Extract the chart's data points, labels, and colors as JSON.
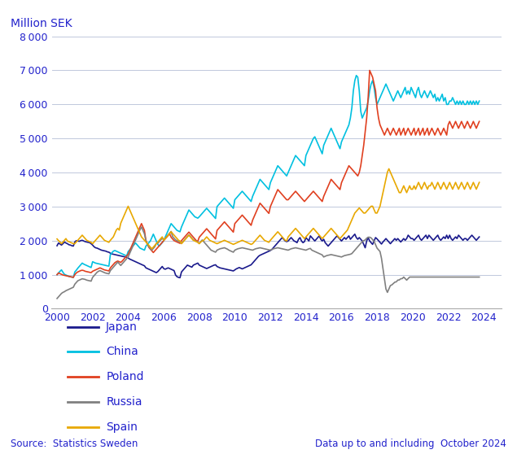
{
  "ylabel": "Million SEK",
  "ylim": [
    0,
    8000
  ],
  "yticks": [
    0,
    1000,
    2000,
    3000,
    4000,
    5000,
    6000,
    7000,
    8000
  ],
  "xlim_start": 1999.7,
  "xlim_end": 2025.0,
  "xtick_years": [
    2000,
    2002,
    2004,
    2006,
    2008,
    2010,
    2012,
    2014,
    2016,
    2018,
    2020,
    2022,
    2024
  ],
  "source_text": "Source:  Statistics Sweden",
  "data_text": "Data up to and including  October 2024",
  "text_color": "#2222cc",
  "bg_color": "#ffffff",
  "grid_color": "#c0c8dc",
  "legend_entries": [
    "Japan",
    "China",
    "Poland",
    "Russia",
    "Spain"
  ],
  "line_colors": [
    "#1a1a8c",
    "#00c0e0",
    "#e04020",
    "#808080",
    "#e8a800"
  ],
  "line_width": 1.2,
  "series": {
    "Japan": [
      1850,
      1930,
      1900,
      1870,
      1910,
      1960,
      1930,
      1910,
      1880,
      1870,
      1850,
      1840,
      1960,
      2000,
      1990,
      1980,
      2000,
      2010,
      1990,
      1970,
      1960,
      1950,
      1940,
      1910,
      1870,
      1820,
      1790,
      1780,
      1760,
      1740,
      1720,
      1710,
      1700,
      1690,
      1670,
      1660,
      1630,
      1610,
      1600,
      1590,
      1580,
      1570,
      1560,
      1550,
      1540,
      1530,
      1520,
      1510,
      1490,
      1460,
      1440,
      1420,
      1400,
      1380,
      1360,
      1340,
      1320,
      1300,
      1280,
      1260,
      1200,
      1180,
      1160,
      1140,
      1120,
      1100,
      1080,
      1060,
      1090,
      1140,
      1190,
      1240,
      1180,
      1160,
      1180,
      1200,
      1180,
      1160,
      1140,
      1120,
      990,
      940,
      920,
      910,
      1080,
      1130,
      1180,
      1230,
      1280,
      1260,
      1240,
      1220,
      1280,
      1300,
      1320,
      1340,
      1280,
      1260,
      1240,
      1220,
      1200,
      1180,
      1200,
      1220,
      1240,
      1260,
      1280,
      1290,
      1240,
      1220,
      1200,
      1190,
      1180,
      1170,
      1160,
      1150,
      1140,
      1130,
      1120,
      1110,
      1140,
      1170,
      1190,
      1210,
      1190,
      1170,
      1190,
      1210,
      1230,
      1250,
      1270,
      1290,
      1340,
      1390,
      1440,
      1490,
      1540,
      1570,
      1590,
      1610,
      1630,
      1650,
      1670,
      1690,
      1710,
      1740,
      1790,
      1840,
      1890,
      1940,
      1990,
      2040,
      2090,
      2040,
      1990,
      1970,
      1990,
      2040,
      2090,
      2040,
      1990,
      1970,
      1940,
      2040,
      2090,
      1990,
      1940,
      1970,
      2090,
      2040,
      1990,
      2140,
      2090,
      2040,
      1990,
      2040,
      2090,
      2140,
      2040,
      1990,
      2040,
      1940,
      1890,
      1840,
      1890,
      1940,
      1990,
      2040,
      2090,
      2140,
      2090,
      2040,
      1990,
      2040,
      2090,
      2040,
      2090,
      2140,
      2040,
      2090,
      2140,
      2190,
      2090,
      2040,
      2090,
      2040,
      1990,
      1890,
      1790,
      1990,
      2090,
      1990,
      1940,
      1890,
      1990,
      2090,
      2050,
      2000,
      1950,
      1900,
      1960,
      2010,
      2060,
      2010,
      1960,
      1910,
      1960,
      2010,
      2060,
      2010,
      2060,
      2010,
      1960,
      2010,
      2060,
      2010,
      2060,
      2160,
      2110,
      2060,
      2060,
      2010,
      2060,
      2110,
      2160,
      2060,
      2010,
      2060,
      2110,
      2160,
      2060,
      2160,
      2110,
      2060,
      2010,
      2060,
      2110,
      2160,
      2060,
      2010,
      2060,
      2110,
      2060,
      2160,
      2060,
      2160,
      2060,
      2010,
      2060,
      2110,
      2060,
      2160,
      2110,
      2060,
      2010,
      2060,
      2060,
      2010,
      2060,
      2110,
      2160,
      2110,
      2060,
      2010,
      2060,
      2110
    ],
    "China": [
      1000,
      1050,
      1100,
      1140,
      1070,
      1010,
      990,
      970,
      950,
      940,
      930,
      920,
      1080,
      1130,
      1190,
      1240,
      1290,
      1340,
      1310,
      1290,
      1270,
      1250,
      1230,
      1210,
      1380,
      1360,
      1340,
      1330,
      1320,
      1310,
      1300,
      1290,
      1280,
      1270,
      1260,
      1250,
      1590,
      1640,
      1690,
      1710,
      1690,
      1670,
      1650,
      1630,
      1610,
      1590,
      1570,
      1550,
      1680,
      1730,
      1780,
      1830,
      1880,
      1930,
      1880,
      1830,
      1780,
      1760,
      1740,
      1720,
      1840,
      1890,
      1940,
      1990,
      2090,
      2190,
      2090,
      1990,
      1890,
      1840,
      1890,
      1940,
      2000,
      2100,
      2200,
      2300,
      2400,
      2500,
      2450,
      2400,
      2350,
      2300,
      2280,
      2260,
      2400,
      2500,
      2600,
      2700,
      2800,
      2900,
      2850,
      2800,
      2750,
      2700,
      2680,
      2660,
      2700,
      2750,
      2800,
      2850,
      2900,
      2950,
      2900,
      2850,
      2800,
      2750,
      2700,
      2650,
      3000,
      3050,
      3100,
      3150,
      3200,
      3250,
      3200,
      3150,
      3100,
      3050,
      3000,
      2950,
      3200,
      3250,
      3300,
      3350,
      3400,
      3450,
      3400,
      3350,
      3300,
      3250,
      3200,
      3150,
      3300,
      3400,
      3500,
      3600,
      3700,
      3800,
      3750,
      3700,
      3650,
      3600,
      3550,
      3500,
      3700,
      3800,
      3900,
      4000,
      4100,
      4200,
      4150,
      4100,
      4050,
      4000,
      3950,
      3900,
      4000,
      4100,
      4200,
      4300,
      4400,
      4500,
      4450,
      4400,
      4350,
      4300,
      4250,
      4200,
      4500,
      4600,
      4700,
      4800,
      4900,
      5000,
      5050,
      4950,
      4850,
      4750,
      4650,
      4550,
      4800,
      4900,
      5000,
      5100,
      5200,
      5300,
      5200,
      5100,
      5000,
      4900,
      4800,
      4700,
      4900,
      5000,
      5100,
      5200,
      5300,
      5400,
      5600,
      5900,
      6400,
      6700,
      6850,
      6800,
      6400,
      5800,
      5600,
      5700,
      5800,
      5900,
      6100,
      6400,
      6600,
      6700,
      6500,
      6200,
      6000,
      6100,
      6200,
      6300,
      6400,
      6500,
      6600,
      6500,
      6400,
      6300,
      6200,
      6100,
      6200,
      6300,
      6400,
      6300,
      6200,
      6300,
      6400,
      6500,
      6300,
      6400,
      6300,
      6500,
      6400,
      6300,
      6200,
      6400,
      6500,
      6300,
      6200,
      6300,
      6400,
      6300,
      6200,
      6300,
      6400,
      6300,
      6200,
      6300,
      6100,
      6200,
      6100,
      6200,
      6300,
      6100,
      6200,
      6000,
      6000,
      6100,
      6100,
      6200,
      6100,
      6000,
      6100,
      6000,
      6100,
      6000,
      6100,
      6000,
      6000,
      6100,
      6000,
      6100,
      6000,
      6100,
      6000,
      6100,
      6000,
      6100
    ],
    "Poland": [
      1000,
      1050,
      1030,
      1010,
      990,
      980,
      970,
      960,
      950,
      940,
      930,
      920,
      1000,
      1050,
      1080,
      1100,
      1120,
      1130,
      1120,
      1100,
      1090,
      1080,
      1070,
      1060,
      1100,
      1120,
      1140,
      1160,
      1180,
      1200,
      1180,
      1160,
      1140,
      1130,
      1120,
      1110,
      1200,
      1250,
      1300,
      1350,
      1380,
      1400,
      1380,
      1360,
      1400,
      1450,
      1500,
      1550,
      1600,
      1700,
      1800,
      1900,
      2000,
      2100,
      2200,
      2300,
      2400,
      2500,
      2400,
      2300,
      2000,
      1900,
      1800,
      1750,
      1700,
      1650,
      1700,
      1750,
      1800,
      1850,
      1900,
      1950,
      2000,
      2050,
      2100,
      2150,
      2200,
      2100,
      2050,
      2000,
      1980,
      1960,
      1940,
      1920,
      2000,
      2050,
      2100,
      2150,
      2200,
      2250,
      2200,
      2150,
      2100,
      2050,
      2000,
      1980,
      2100,
      2150,
      2200,
      2250,
      2300,
      2350,
      2300,
      2250,
      2200,
      2150,
      2100,
      2050,
      2300,
      2350,
      2400,
      2450,
      2500,
      2550,
      2500,
      2450,
      2400,
      2350,
      2300,
      2250,
      2500,
      2550,
      2600,
      2650,
      2700,
      2750,
      2700,
      2650,
      2600,
      2550,
      2500,
      2450,
      2600,
      2700,
      2800,
      2900,
      3000,
      3100,
      3050,
      3000,
      2950,
      2900,
      2850,
      2800,
      3000,
      3100,
      3200,
      3300,
      3400,
      3500,
      3450,
      3400,
      3350,
      3300,
      3250,
      3200,
      3200,
      3250,
      3300,
      3350,
      3400,
      3450,
      3400,
      3350,
      3300,
      3250,
      3200,
      3150,
      3200,
      3250,
      3300,
      3350,
      3400,
      3450,
      3400,
      3350,
      3300,
      3250,
      3200,
      3150,
      3300,
      3400,
      3500,
      3600,
      3700,
      3800,
      3750,
      3700,
      3650,
      3600,
      3550,
      3500,
      3700,
      3800,
      3900,
      4000,
      4100,
      4200,
      4150,
      4100,
      4050,
      4000,
      3950,
      3900,
      4000,
      4200,
      4500,
      4800,
      5200,
      5600,
      6200,
      7000,
      6900,
      6800,
      6600,
      6400,
      5900,
      5600,
      5400,
      5300,
      5200,
      5100,
      5200,
      5300,
      5200,
      5100,
      5200,
      5300,
      5200,
      5100,
      5200,
      5300,
      5100,
      5200,
      5300,
      5100,
      5200,
      5300,
      5200,
      5100,
      5200,
      5300,
      5100,
      5200,
      5300,
      5100,
      5200,
      5300,
      5100,
      5200,
      5300,
      5100,
      5200,
      5300,
      5200,
      5100,
      5200,
      5300,
      5200,
      5100,
      5200,
      5300,
      5200,
      5100,
      5400,
      5500,
      5400,
      5300,
      5400,
      5500,
      5400,
      5300,
      5400,
      5500,
      5400,
      5300,
      5400,
      5500,
      5400,
      5300,
      5400,
      5500,
      5400,
      5300,
      5400,
      5500
    ],
    "Russia": [
      300,
      350,
      400,
      450,
      480,
      500,
      530,
      550,
      570,
      590,
      610,
      630,
      720,
      770,
      820,
      840,
      860,
      880,
      870,
      860,
      840,
      830,
      820,
      810,
      920,
      970,
      1020,
      1070,
      1100,
      1120,
      1100,
      1080,
      1060,
      1045,
      1035,
      1025,
      1120,
      1170,
      1220,
      1270,
      1320,
      1370,
      1320,
      1270,
      1320,
      1370,
      1420,
      1470,
      1520,
      1620,
      1720,
      1820,
      1920,
      2020,
      2120,
      2220,
      2320,
      2400,
      2300,
      2200,
      2000,
      1900,
      1820,
      1770,
      1720,
      1770,
      1820,
      1920,
      1920,
      1970,
      2020,
      2070,
      2020,
      2070,
      2120,
      2170,
      2220,
      2270,
      2120,
      2070,
      2020,
      2000,
      1980,
      1960,
      1920,
      1970,
      2020,
      2070,
      2120,
      2170,
      2120,
      2070,
      2020,
      2000,
      1980,
      1960,
      1920,
      1970,
      2020,
      1970,
      1920,
      1870,
      1820,
      1770,
      1720,
      1700,
      1680,
      1660,
      1720,
      1740,
      1760,
      1770,
      1780,
      1790,
      1770,
      1750,
      1720,
      1700,
      1680,
      1660,
      1720,
      1740,
      1760,
      1770,
      1780,
      1790,
      1780,
      1770,
      1760,
      1750,
      1740,
      1730,
      1720,
      1740,
      1760,
      1770,
      1780,
      1790,
      1780,
      1770,
      1760,
      1750,
      1740,
      1730,
      1720,
      1740,
      1760,
      1770,
      1780,
      1790,
      1780,
      1770,
      1760,
      1750,
      1740,
      1730,
      1720,
      1740,
      1760,
      1770,
      1780,
      1790,
      1780,
      1770,
      1760,
      1750,
      1740,
      1730,
      1720,
      1740,
      1760,
      1770,
      1720,
      1700,
      1680,
      1660,
      1640,
      1620,
      1600,
      1580,
      1520,
      1540,
      1560,
      1570,
      1580,
      1590,
      1580,
      1570,
      1560,
      1550,
      1540,
      1530,
      1520,
      1540,
      1560,
      1570,
      1580,
      1590,
      1600,
      1620,
      1670,
      1720,
      1770,
      1820,
      1870,
      1920,
      1970,
      2000,
      2020,
      2070,
      2100,
      2100,
      2080,
      2030,
      1980,
      1880,
      1780,
      1730,
      1680,
      1480,
      1180,
      880,
      580,
      480,
      580,
      680,
      700,
      740,
      780,
      790,
      840,
      845,
      880,
      885,
      930,
      885,
      840,
      885,
      930,
      930,
      930,
      930,
      930,
      930,
      930,
      930,
      930,
      930,
      930,
      930,
      930,
      930,
      930,
      930,
      930,
      930,
      930,
      930,
      930,
      930,
      930,
      930,
      930,
      930,
      930,
      930,
      930,
      930,
      930,
      930,
      930,
      930,
      930,
      930,
      930,
      930,
      930,
      930,
      930,
      930,
      930,
      930,
      930,
      930,
      930,
      930
    ],
    "Spain": [
      2050,
      2000,
      1960,
      1910,
      1960,
      2010,
      2060,
      1990,
      1970,
      1950,
      1930,
      1910,
      1910,
      1960,
      2010,
      2060,
      2110,
      2160,
      2110,
      2060,
      2010,
      1990,
      1970,
      1950,
      1910,
      1960,
      2010,
      2060,
      2110,
      2160,
      2110,
      2060,
      2010,
      1990,
      1970,
      1950,
      2010,
      2060,
      2110,
      2210,
      2310,
      2360,
      2310,
      2510,
      2610,
      2710,
      2810,
      2910,
      3010,
      2910,
      2810,
      2710,
      2610,
      2510,
      2410,
      2310,
      2210,
      2110,
      2060,
      2010,
      1960,
      1910,
      1860,
      1810,
      1760,
      1810,
      1860,
      1910,
      1960,
      2010,
      2060,
      2110,
      2010,
      2060,
      2110,
      2160,
      2210,
      2260,
      2210,
      2160,
      2110,
      2060,
      2010,
      1990,
      1910,
      1960,
      2010,
      2060,
      2110,
      2160,
      2110,
      2060,
      2010,
      1990,
      1970,
      1950,
      1910,
      1960,
      1990,
      2010,
      2060,
      2110,
      2060,
      2010,
      1990,
      1970,
      1950,
      1930,
      1910,
      1930,
      1950,
      1970,
      1990,
      2010,
      1990,
      1970,
      1950,
      1930,
      1910,
      1890,
      1910,
      1930,
      1950,
      1970,
      1990,
      2010,
      1990,
      1970,
      1950,
      1930,
      1910,
      1890,
      1910,
      1960,
      2010,
      2060,
      2110,
      2160,
      2110,
      2060,
      2010,
      1990,
      1970,
      1950,
      2010,
      2060,
      2110,
      2160,
      2210,
      2260,
      2210,
      2160,
      2110,
      2060,
      2010,
      1990,
      2110,
      2160,
      2210,
      2260,
      2310,
      2360,
      2310,
      2260,
      2210,
      2160,
      2110,
      2060,
      2110,
      2160,
      2210,
      2260,
      2310,
      2360,
      2310,
      2260,
      2210,
      2160,
      2110,
      2060,
      2110,
      2160,
      2210,
      2260,
      2310,
      2360,
      2310,
      2260,
      2210,
      2160,
      2110,
      2060,
      2110,
      2160,
      2210,
      2260,
      2310,
      2410,
      2510,
      2610,
      2710,
      2810,
      2860,
      2910,
      2960,
      2910,
      2860,
      2810,
      2810,
      2860,
      2910,
      2960,
      3010,
      3010,
      2910,
      2810,
      2810,
      2910,
      3010,
      3210,
      3410,
      3610,
      3810,
      4010,
      4110,
      4010,
      3910,
      3810,
      3710,
      3610,
      3510,
      3410,
      3410,
      3510,
      3610,
      3510,
      3410,
      3510,
      3610,
      3510,
      3510,
      3610,
      3510,
      3610,
      3710,
      3610,
      3510,
      3610,
      3710,
      3610,
      3510,
      3610,
      3610,
      3710,
      3610,
      3510,
      3610,
      3710,
      3610,
      3510,
      3610,
      3710,
      3610,
      3510,
      3610,
      3710,
      3610,
      3510,
      3610,
      3710,
      3610,
      3510,
      3610,
      3710,
      3610,
      3510,
      3610,
      3710,
      3610,
      3510,
      3610,
      3710,
      3610,
      3510,
      3610,
      3710
    ]
  }
}
